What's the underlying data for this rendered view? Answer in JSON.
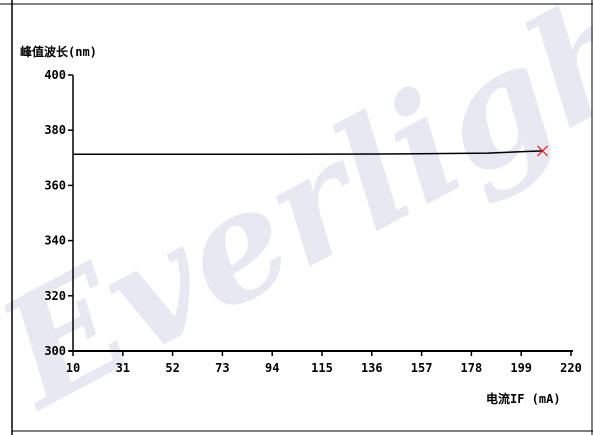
{
  "chart_data": {
    "type": "line",
    "ylabel": "峰值波长(nm)",
    "xlabel": "电流IF (mA)",
    "x_ticks": [
      10,
      31,
      52,
      73,
      94,
      115,
      136,
      157,
      178,
      199,
      220
    ],
    "y_ticks": [
      300,
      320,
      340,
      360,
      380,
      400
    ],
    "xlim": [
      10,
      220
    ],
    "ylim": [
      300,
      400
    ],
    "grid": false,
    "series": [
      {
        "x": [
          10,
          50,
          100,
          150,
          185,
          201,
          208
        ],
        "y": [
          371.3,
          371.3,
          371.3,
          371.4,
          371.7,
          372.3,
          372.5
        ],
        "color": "#000000"
      }
    ],
    "marker": {
      "x": 208,
      "y": 372.5,
      "symbol": "x",
      "color": "#e0242a"
    }
  },
  "watermark": "Everlight"
}
